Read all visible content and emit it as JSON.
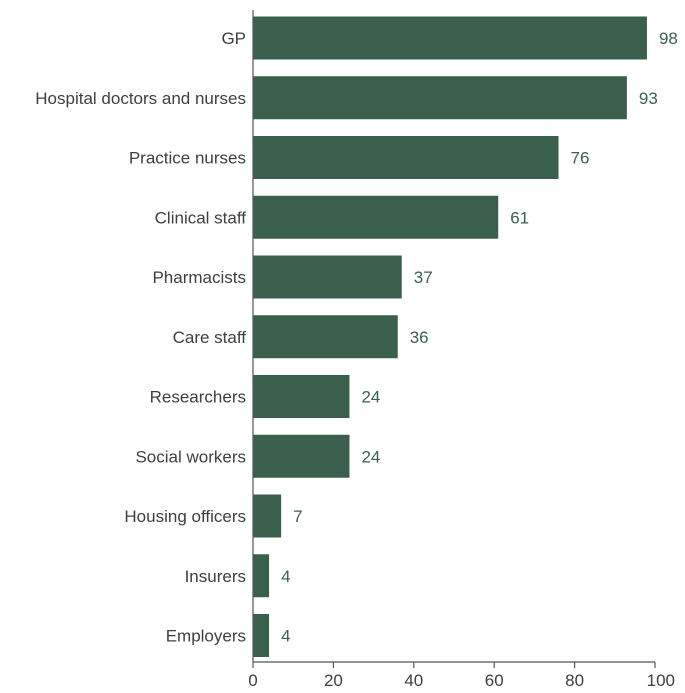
{
  "chart_data": {
    "type": "bar",
    "orientation": "horizontal",
    "categories": [
      "GP",
      "Hospital doctors and nurses",
      "Practice nurses",
      "Clinical staff",
      "Pharmacists",
      "Care staff",
      "Researchers",
      "Social workers",
      "Housing officers",
      "Insurers",
      "Employers"
    ],
    "values": [
      98,
      93,
      76,
      61,
      37,
      36,
      24,
      24,
      7,
      4,
      4
    ],
    "title": "",
    "xlabel": "",
    "ylabel": "",
    "xlim": [
      0,
      100
    ],
    "x_ticks": [
      "0",
      "20",
      "40",
      "60",
      "80",
      "100"
    ],
    "grid": false,
    "legend": "none",
    "data_labels": true,
    "colors": {
      "bar": "#3a604d",
      "label": "#3f3f3f",
      "value": "#3a604d",
      "axis": "#555555"
    }
  }
}
